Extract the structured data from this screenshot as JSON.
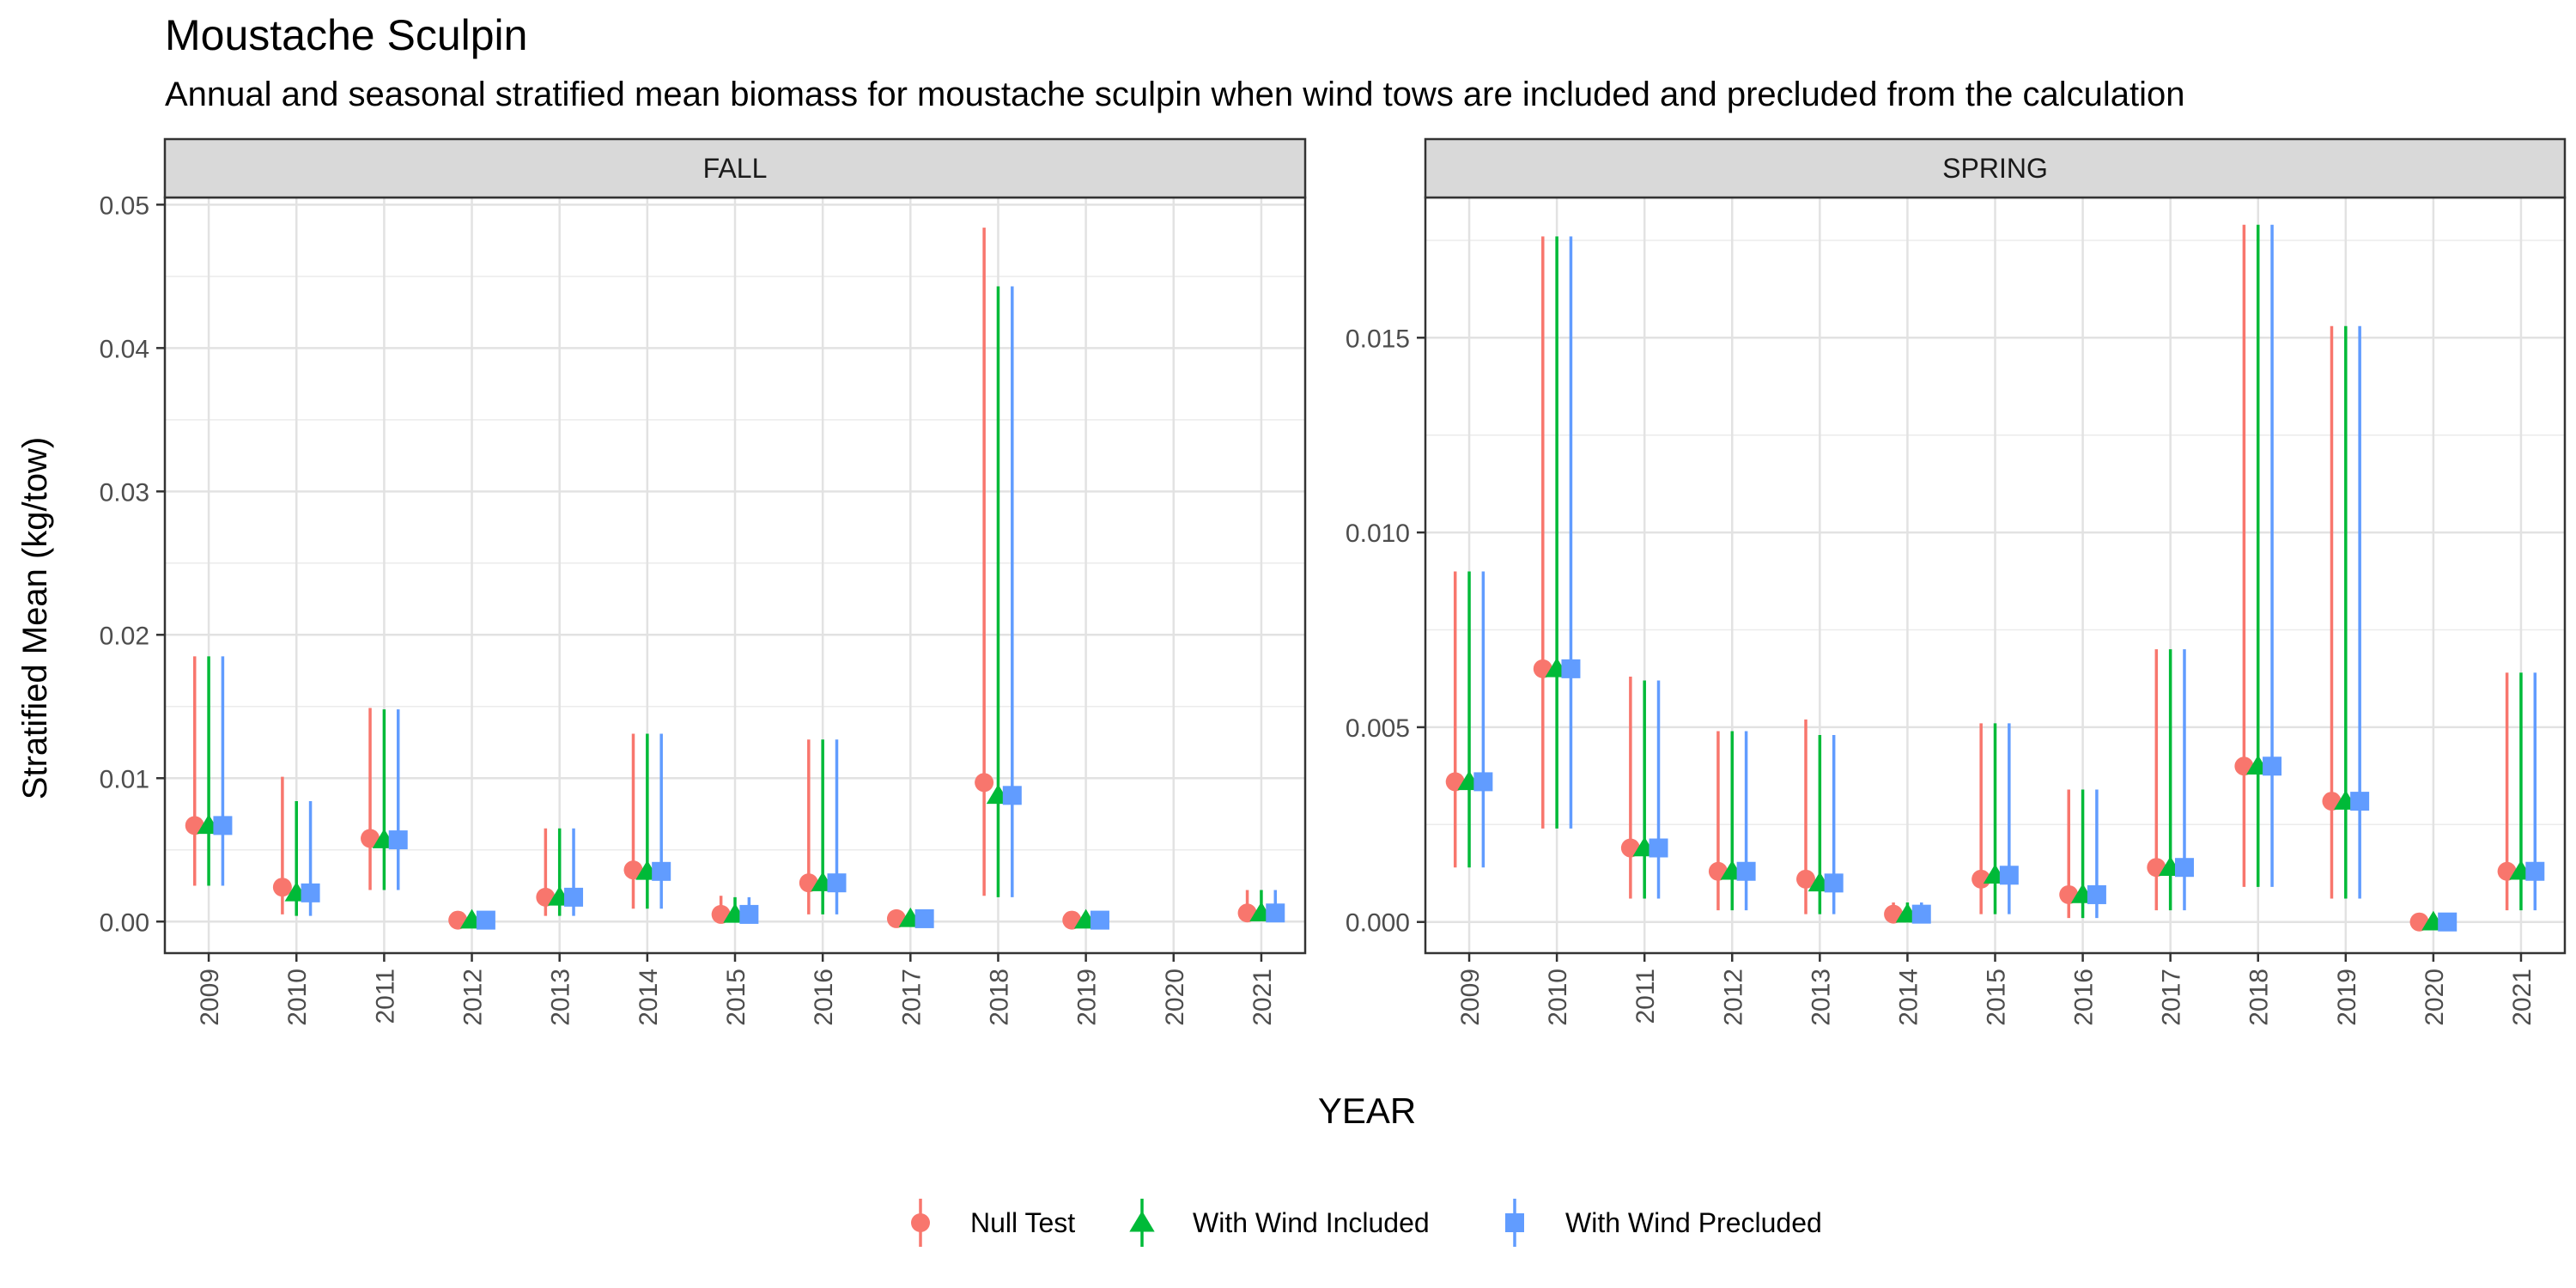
{
  "chart_data": {
    "type": "scatter",
    "title": "Moustache Sculpin",
    "subtitle": "Annual and seasonal stratified mean biomass for moustache sculpin when wind tows are included and precluded from the calculation",
    "xlabel": "YEAR",
    "ylabel": "Stratified Mean (kg/tow)",
    "legend_position": "bottom",
    "grid": true,
    "series": [
      {
        "name": "Null Test",
        "color": "#F8766D",
        "shape": "circle"
      },
      {
        "name": "With Wind Included",
        "color": "#00BA38",
        "shape": "triangle"
      },
      {
        "name": "With Wind Precluded",
        "color": "#619CFF",
        "shape": "square"
      }
    ],
    "panels": [
      {
        "label": "FALL",
        "ylim": [
          -0.0022,
          0.0505
        ],
        "yticks": [
          0.0,
          0.01,
          0.02,
          0.03,
          0.04,
          0.05
        ],
        "ytick_labels": [
          "0.00",
          "0.01",
          "0.02",
          "0.03",
          "0.04",
          "0.05"
        ],
        "years": [
          "2009",
          "2010",
          "2011",
          "2012",
          "2013",
          "2014",
          "2015",
          "2016",
          "2017",
          "2018",
          "2019",
          "2020",
          "2021"
        ],
        "values": {
          "Null Test": [
            {
              "y": 0.0067,
              "lo": 0.0025,
              "hi": 0.0185
            },
            {
              "y": 0.0024,
              "lo": 0.0005,
              "hi": 0.0101
            },
            {
              "y": 0.0058,
              "lo": 0.0022,
              "hi": 0.0149
            },
            {
              "y": 0.0001,
              "lo": 0.0,
              "hi": 0.0003
            },
            {
              "y": 0.0017,
              "lo": 0.0004,
              "hi": 0.0065
            },
            {
              "y": 0.0036,
              "lo": 0.0009,
              "hi": 0.0131
            },
            {
              "y": 0.0005,
              "lo": 0.0001,
              "hi": 0.0018
            },
            {
              "y": 0.0027,
              "lo": 0.0005,
              "hi": 0.0127
            },
            {
              "y": 0.0002,
              "lo": 0.0,
              "hi": 0.0005
            },
            {
              "y": 0.0097,
              "lo": 0.0018,
              "hi": 0.0484
            },
            {
              "y": 0.0001,
              "lo": 0.0,
              "hi": 0.0002
            },
            null,
            {
              "y": 0.0006,
              "lo": 0.0001,
              "hi": 0.0022
            }
          ],
          "With Wind Included": [
            {
              "y": 0.0067,
              "lo": 0.0025,
              "hi": 0.0185
            },
            {
              "y": 0.002,
              "lo": 0.0004,
              "hi": 0.0084
            },
            {
              "y": 0.0057,
              "lo": 0.0022,
              "hi": 0.0148
            },
            {
              "y": 0.0001,
              "lo": 0.0,
              "hi": 0.0003
            },
            {
              "y": 0.0017,
              "lo": 0.0004,
              "hi": 0.0065
            },
            {
              "y": 0.0035,
              "lo": 0.0009,
              "hi": 0.0131
            },
            {
              "y": 0.0005,
              "lo": 0.0001,
              "hi": 0.0017
            },
            {
              "y": 0.0027,
              "lo": 0.0005,
              "hi": 0.0127
            },
            {
              "y": 0.0002,
              "lo": 0.0,
              "hi": 0.0005
            },
            {
              "y": 0.0088,
              "lo": 0.0017,
              "hi": 0.0443
            },
            {
              "y": 0.0001,
              "lo": 0.0,
              "hi": 0.0002
            },
            null,
            {
              "y": 0.0006,
              "lo": 0.0001,
              "hi": 0.0022
            }
          ],
          "With Wind Precluded": [
            {
              "y": 0.0067,
              "lo": 0.0025,
              "hi": 0.0185
            },
            {
              "y": 0.002,
              "lo": 0.0004,
              "hi": 0.0084
            },
            {
              "y": 0.0057,
              "lo": 0.0022,
              "hi": 0.0148
            },
            {
              "y": 0.0001,
              "lo": 0.0,
              "hi": 0.0003
            },
            {
              "y": 0.0017,
              "lo": 0.0004,
              "hi": 0.0065
            },
            {
              "y": 0.0035,
              "lo": 0.0009,
              "hi": 0.0131
            },
            {
              "y": 0.0005,
              "lo": 0.0001,
              "hi": 0.0017
            },
            {
              "y": 0.0027,
              "lo": 0.0005,
              "hi": 0.0127
            },
            {
              "y": 0.0002,
              "lo": 0.0,
              "hi": 0.0005
            },
            {
              "y": 0.0088,
              "lo": 0.0017,
              "hi": 0.0443
            },
            {
              "y": 0.0001,
              "lo": 0.0,
              "hi": 0.0002
            },
            null,
            {
              "y": 0.0006,
              "lo": 0.0001,
              "hi": 0.0022
            }
          ]
        }
      },
      {
        "label": "SPRING",
        "ylim": [
          -0.0008,
          0.0186
        ],
        "yticks": [
          0.0,
          0.005,
          0.01,
          0.015
        ],
        "ytick_labels": [
          "0.000",
          "0.005",
          "0.010",
          "0.015"
        ],
        "years": [
          "2009",
          "2010",
          "2011",
          "2012",
          "2013",
          "2014",
          "2015",
          "2016",
          "2017",
          "2018",
          "2019",
          "2020",
          "2021"
        ],
        "values": {
          "Null Test": [
            {
              "y": 0.0036,
              "lo": 0.0014,
              "hi": 0.009
            },
            {
              "y": 0.0065,
              "lo": 0.0024,
              "hi": 0.0176
            },
            {
              "y": 0.0019,
              "lo": 0.0006,
              "hi": 0.0063
            },
            {
              "y": 0.0013,
              "lo": 0.0003,
              "hi": 0.0049
            },
            {
              "y": 0.0011,
              "lo": 0.0002,
              "hi": 0.0052
            },
            {
              "y": 0.0002,
              "lo": 0.0,
              "hi": 0.0005
            },
            {
              "y": 0.0011,
              "lo": 0.0002,
              "hi": 0.0051
            },
            {
              "y": 0.0007,
              "lo": 0.0001,
              "hi": 0.0034
            },
            {
              "y": 0.0014,
              "lo": 0.0003,
              "hi": 0.007
            },
            {
              "y": 0.004,
              "lo": 0.0009,
              "hi": 0.0179
            },
            {
              "y": 0.0031,
              "lo": 0.0006,
              "hi": 0.0153
            },
            {
              "y": 0.0,
              "lo": 0.0,
              "hi": 0.0
            },
            {
              "y": 0.0013,
              "lo": 0.0003,
              "hi": 0.0064
            }
          ],
          "With Wind Included": [
            {
              "y": 0.0036,
              "lo": 0.0014,
              "hi": 0.009
            },
            {
              "y": 0.0065,
              "lo": 0.0024,
              "hi": 0.0176
            },
            {
              "y": 0.0019,
              "lo": 0.0006,
              "hi": 0.0062
            },
            {
              "y": 0.0013,
              "lo": 0.0003,
              "hi": 0.0049
            },
            {
              "y": 0.001,
              "lo": 0.0002,
              "hi": 0.0048
            },
            {
              "y": 0.0002,
              "lo": 0.0,
              "hi": 0.0005
            },
            {
              "y": 0.0012,
              "lo": 0.0002,
              "hi": 0.0051
            },
            {
              "y": 0.0007,
              "lo": 0.0001,
              "hi": 0.0034
            },
            {
              "y": 0.0014,
              "lo": 0.0003,
              "hi": 0.007
            },
            {
              "y": 0.004,
              "lo": 0.0009,
              "hi": 0.0179
            },
            {
              "y": 0.0031,
              "lo": 0.0006,
              "hi": 0.0153
            },
            {
              "y": 0.0,
              "lo": 0.0,
              "hi": 0.0
            },
            {
              "y": 0.0013,
              "lo": 0.0003,
              "hi": 0.0064
            }
          ],
          "With Wind Precluded": [
            {
              "y": 0.0036,
              "lo": 0.0014,
              "hi": 0.009
            },
            {
              "y": 0.0065,
              "lo": 0.0024,
              "hi": 0.0176
            },
            {
              "y": 0.0019,
              "lo": 0.0006,
              "hi": 0.0062
            },
            {
              "y": 0.0013,
              "lo": 0.0003,
              "hi": 0.0049
            },
            {
              "y": 0.001,
              "lo": 0.0002,
              "hi": 0.0048
            },
            {
              "y": 0.0002,
              "lo": 0.0,
              "hi": 0.0005
            },
            {
              "y": 0.0012,
              "lo": 0.0002,
              "hi": 0.0051
            },
            {
              "y": 0.0007,
              "lo": 0.0001,
              "hi": 0.0034
            },
            {
              "y": 0.0014,
              "lo": 0.0003,
              "hi": 0.007
            },
            {
              "y": 0.004,
              "lo": 0.0009,
              "hi": 0.0179
            },
            {
              "y": 0.0031,
              "lo": 0.0006,
              "hi": 0.0153
            },
            {
              "y": 0.0,
              "lo": 0.0,
              "hi": 0.0
            },
            {
              "y": 0.0013,
              "lo": 0.0003,
              "hi": 0.0064
            }
          ]
        }
      }
    ]
  }
}
